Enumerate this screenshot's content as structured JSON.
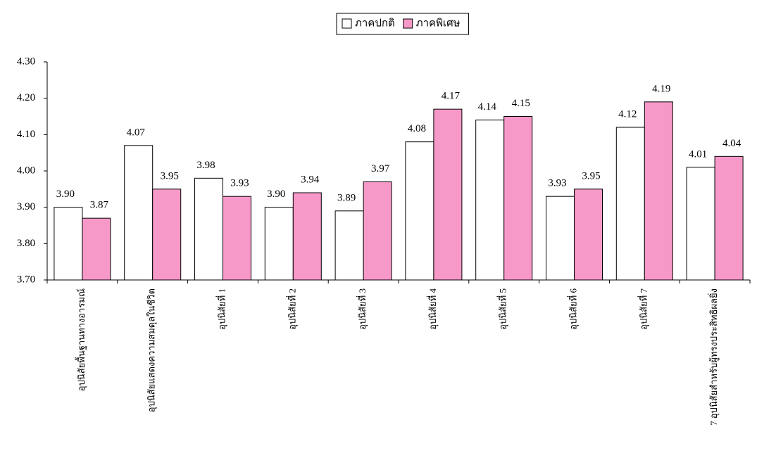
{
  "chart_data": {
    "type": "bar",
    "categories": [
      "อุปนิสัยพื้นฐานทางอารมณ์",
      "อุปนิสัยแสดงความสมดุลในชีวิต",
      "อุปนิสัยที่ 1",
      "อุปนิสัยที่ 2",
      "อุปนิสัยที่ 3",
      "อุปนิสัยที่ 4",
      "อุปนิสัยที่ 5",
      "อุปนิสัยที่ 6",
      "อุปนิสัยที่ 7",
      "7 อุปนิสัยสำหรับผู้ทรงประสิทธิผลยิ่ง"
    ],
    "series": [
      {
        "name": "ภาคปกติ",
        "color": "#ffffff",
        "values": [
          3.9,
          4.07,
          3.98,
          3.9,
          3.89,
          4.08,
          4.14,
          3.93,
          4.12,
          4.01
        ],
        "value_labels": [
          "3.90",
          "4.07",
          "3.98",
          "3.90",
          "3.89",
          "4.08",
          "4.14",
          "3.93",
          "4.12",
          "4.01"
        ]
      },
      {
        "name": "ภาคพิเศษ",
        "color": "#f799c8",
        "values": [
          3.87,
          3.95,
          3.93,
          3.94,
          3.97,
          4.17,
          4.15,
          3.95,
          4.19,
          4.04
        ],
        "value_labels": [
          "3.87",
          "3.95",
          "3.93",
          "3.94",
          "3.97",
          "4.17",
          "4.15",
          "3.95",
          "4.19",
          "4.04"
        ]
      }
    ],
    "ylim": [
      3.7,
      4.3
    ],
    "yticks": [
      {
        "value": 3.7,
        "label": "3.70"
      },
      {
        "value": 3.8,
        "label": "3.80"
      },
      {
        "value": 3.9,
        "label": "3.90"
      },
      {
        "value": 4.0,
        "label": "4.00"
      },
      {
        "value": 4.1,
        "label": "4.10"
      },
      {
        "value": 4.2,
        "label": "4.20"
      },
      {
        "value": 4.3,
        "label": "4.30"
      }
    ],
    "legend": "top"
  }
}
